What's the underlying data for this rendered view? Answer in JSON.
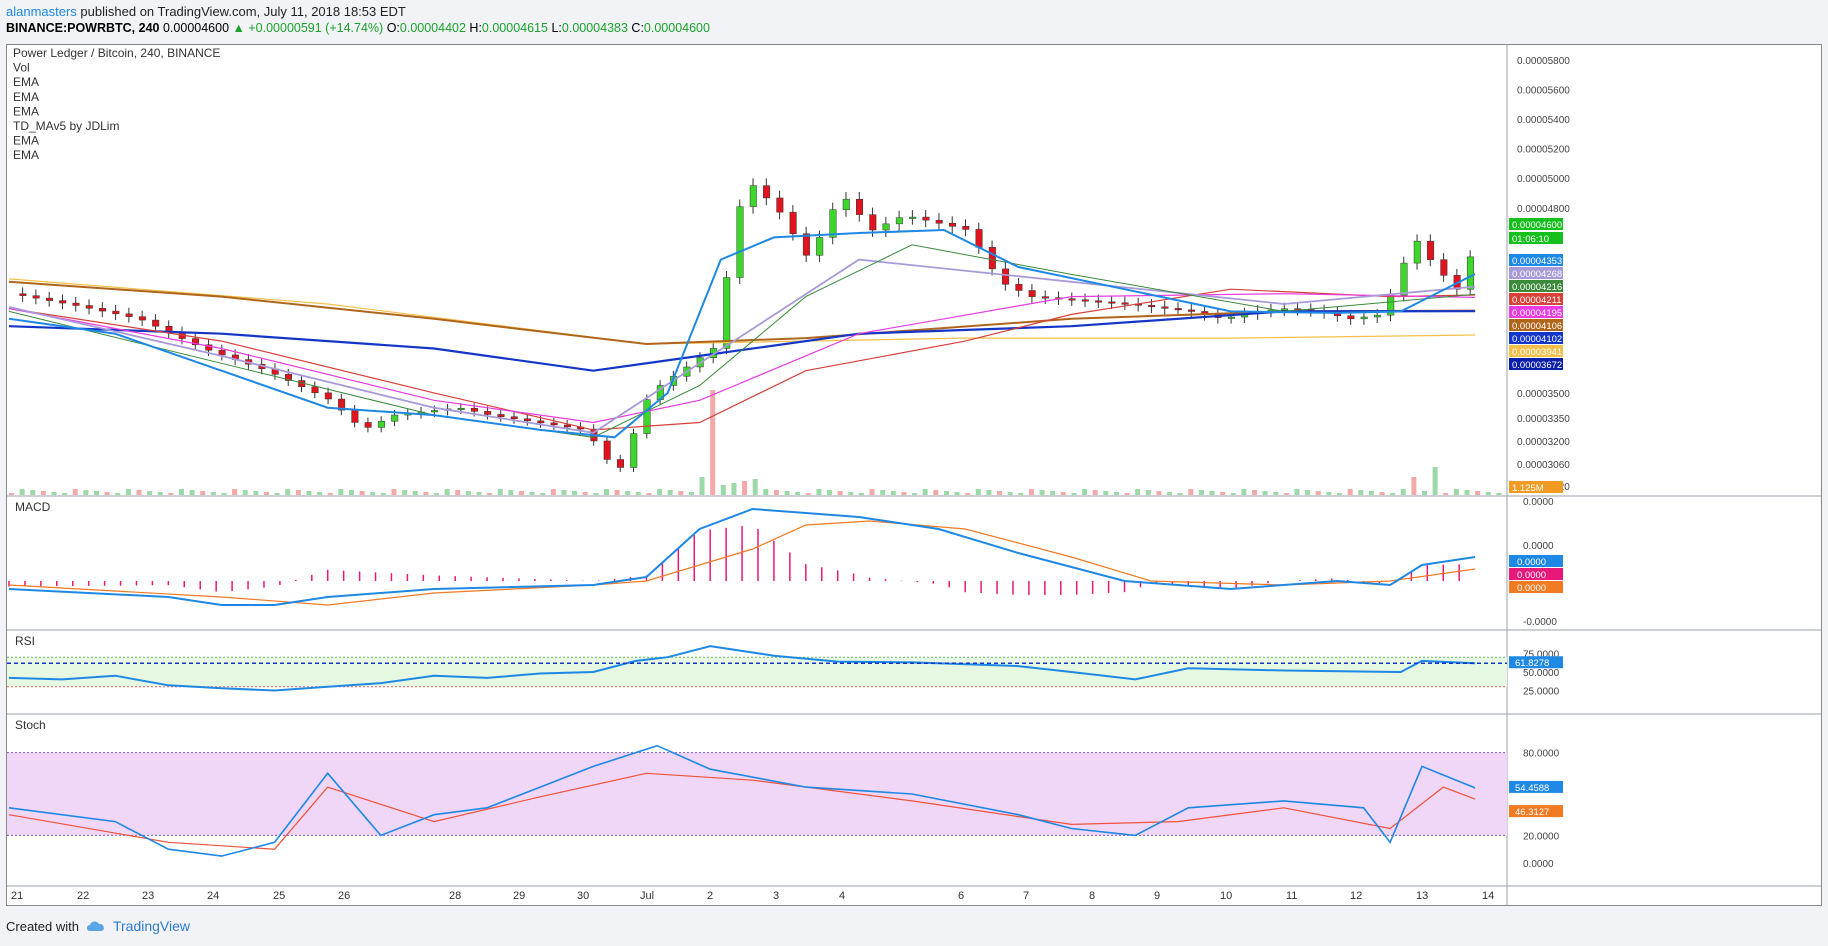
{
  "header": {
    "user": "alanmasters",
    "published_text": " published on TradingView.com, July 11, 2018 18:53 EDT",
    "symbol": "BINANCE:POWRBTC, 240",
    "price": "0.00004600",
    "change": "▲ +0.00000591 (+14.74%)",
    "o_label": "O:",
    "o_val": "0.00004402",
    "h_label": "H:",
    "h_val": "0.00004615",
    "l_label": "L:",
    "l_val": "0.00004383",
    "c_label": "C:",
    "c_val": "0.00004600"
  },
  "legend": [
    "Power Ledger / Bitcoin, 240, BINANCE",
    "Vol",
    "EMA",
    "EMA",
    "EMA",
    "TD_MAv5 by JDLim",
    "EMA",
    "EMA"
  ],
  "footer": {
    "created": "Created with",
    "brand": "TradingView"
  },
  "colors": {
    "up": "#3dd62a",
    "down": "#e0141e",
    "ema_blue": "#1e88e5",
    "ema_navy": "#1336c8",
    "ema_brown": "#b0651b",
    "ema_red": "#d8403a",
    "ema_pink": "#e83ce0",
    "ema_lav": "#a89ad8",
    "ema_green": "#3a8a3a",
    "ema_yellow": "#f4c04a"
  },
  "chart_data": {
    "type": "line",
    "x_tick_labels": [
      "21",
      "22",
      "23",
      "24",
      "25",
      "26",
      "28",
      "29",
      "30",
      "Jul",
      "2",
      "3",
      "4",
      "6",
      "7",
      "8",
      "9",
      "10",
      "11",
      "12",
      "13",
      "14"
    ],
    "price_pane": {
      "y_tick_labels": [
        "0.00005800",
        "0.00005600",
        "0.00005400",
        "0.00005200",
        "0.00005000",
        "0.00004800",
        "0.00003500",
        "0.00003350",
        "0.00003200",
        "0.00003060",
        "0.00002920"
      ],
      "price_path": [
        [
          0,
          4.22e-05
        ],
        [
          12,
          4.14e-05
        ],
        [
          24,
          4.05e-05
        ],
        [
          36,
          3.85e-05
        ],
        [
          48,
          3.7e-05
        ],
        [
          60,
          3.5e-05
        ],
        [
          66,
          3.3e-05
        ],
        [
          72,
          3.4e-05
        ],
        [
          84,
          3.45e-05
        ],
        [
          90,
          3.4e-05
        ],
        [
          108,
          3.3e-05
        ],
        [
          114,
          3e-05
        ],
        [
          120,
          3.55e-05
        ],
        [
          132,
          3.85e-05
        ],
        [
          138,
          5e-05
        ],
        [
          144,
          4.8e-05
        ],
        [
          150,
          4.45e-05
        ],
        [
          156,
          4.9e-05
        ],
        [
          162,
          4.65e-05
        ],
        [
          168,
          4.75e-05
        ],
        [
          174,
          4.7e-05
        ],
        [
          180,
          4.65e-05
        ],
        [
          186,
          4.3e-05
        ],
        [
          192,
          4.2e-05
        ],
        [
          210,
          4.15e-05
        ],
        [
          222,
          4.1e-05
        ],
        [
          228,
          4.05e-05
        ],
        [
          234,
          4.1e-05
        ],
        [
          240,
          4.12e-05
        ],
        [
          246,
          4.1e-05
        ],
        [
          252,
          4.05e-05
        ],
        [
          258,
          4.08e-05
        ],
        [
          264,
          4.6e-05
        ],
        [
          268,
          4.4e-05
        ],
        [
          272,
          4.25e-05
        ],
        [
          276,
          4.6e-05
        ]
      ],
      "ema_blue_path": [
        [
          0,
          4.05e-05
        ],
        [
          20,
          3.95e-05
        ],
        [
          40,
          3.7e-05
        ],
        [
          60,
          3.45e-05
        ],
        [
          80,
          3.4e-05
        ],
        [
          100,
          3.3e-05
        ],
        [
          114,
          3.25e-05
        ],
        [
          124,
          3.55e-05
        ],
        [
          134,
          4.45e-05
        ],
        [
          144,
          4.6e-05
        ],
        [
          160,
          4.63e-05
        ],
        [
          176,
          4.65e-05
        ],
        [
          190,
          4.4e-05
        ],
        [
          210,
          4.25e-05
        ],
        [
          230,
          4.1e-05
        ],
        [
          250,
          4.09e-05
        ],
        [
          262,
          4.1e-05
        ],
        [
          276,
          4.353e-05
        ]
      ],
      "ema_navy_path": [
        [
          0,
          4e-05
        ],
        [
          40,
          3.95e-05
        ],
        [
          80,
          3.85e-05
        ],
        [
          110,
          3.7e-05
        ],
        [
          130,
          3.8e-05
        ],
        [
          160,
          3.95e-05
        ],
        [
          200,
          4e-05
        ],
        [
          240,
          4.1e-05
        ],
        [
          276,
          4.102e-05
        ]
      ],
      "ema_brown_path": [
        [
          0,
          4.3e-05
        ],
        [
          40,
          4.2e-05
        ],
        [
          80,
          4.05e-05
        ],
        [
          120,
          3.88e-05
        ],
        [
          150,
          3.92e-05
        ],
        [
          200,
          4.05e-05
        ],
        [
          240,
          4.1e-05
        ],
        [
          276,
          4.106e-05
        ]
      ],
      "ema_red_path": [
        [
          0,
          4.12e-05
        ],
        [
          40,
          3.9e-05
        ],
        [
          80,
          3.55e-05
        ],
        [
          110,
          3.3e-05
        ],
        [
          130,
          3.35e-05
        ],
        [
          150,
          3.7e-05
        ],
        [
          180,
          3.9e-05
        ],
        [
          200,
          4.08e-05
        ],
        [
          230,
          4.25e-05
        ],
        [
          260,
          4.2e-05
        ],
        [
          276,
          4.211e-05
        ]
      ],
      "ema_pink_path": [
        [
          0,
          4.12e-05
        ],
        [
          40,
          3.85e-05
        ],
        [
          80,
          3.5e-05
        ],
        [
          110,
          3.35e-05
        ],
        [
          130,
          3.5e-05
        ],
        [
          160,
          3.95e-05
        ],
        [
          200,
          4.2e-05
        ],
        [
          240,
          4.22e-05
        ],
        [
          276,
          4.195e-05
        ]
      ],
      "ema_lav_path": [
        [
          0,
          4.13e-05
        ],
        [
          40,
          3.8e-05
        ],
        [
          80,
          3.45e-05
        ],
        [
          110,
          3.28e-05
        ],
        [
          130,
          3.75e-05
        ],
        [
          160,
          4.45e-05
        ],
        [
          200,
          4.3e-05
        ],
        [
          240,
          4.15e-05
        ],
        [
          276,
          4.268e-05
        ]
      ],
      "ema_green_path": [
        [
          0,
          4.1e-05
        ],
        [
          40,
          3.75e-05
        ],
        [
          80,
          3.4e-05
        ],
        [
          110,
          3.25e-05
        ],
        [
          130,
          3.6e-05
        ],
        [
          150,
          4.2e-05
        ],
        [
          170,
          4.55e-05
        ],
        [
          200,
          4.35e-05
        ],
        [
          240,
          4.1e-05
        ],
        [
          276,
          4.216e-05
        ]
      ],
      "ema_yellow_path": [
        [
          0,
          4.32e-05
        ],
        [
          60,
          4.15e-05
        ],
        [
          120,
          3.88e-05
        ],
        [
          180,
          3.92e-05
        ],
        [
          230,
          3.92e-05
        ],
        [
          276,
          3.941e-05
        ]
      ],
      "right_labels": [
        {
          "text": "0.00004600",
          "color": "#16c01c",
          "y": 4.6e-05
        },
        {
          "text": "01:06:10",
          "color": "#16c01c",
          "y": 4.54e-05
        },
        {
          "text": "0.00004353",
          "color": "#1e88e5",
          "y": 4.353e-05
        },
        {
          "text": "0.00004268",
          "color": "#a89ad8",
          "y": 4.268e-05
        },
        {
          "text": "0.00004216",
          "color": "#3a8a3a",
          "y": 4.216e-05
        },
        {
          "text": "0.00004211",
          "color": "#d8403a",
          "y": 4.211e-05
        },
        {
          "text": "0.00004195",
          "color": "#e83ce0",
          "y": 4.195e-05
        },
        {
          "text": "0.00004106",
          "color": "#b0651b",
          "y": 4.106e-05
        },
        {
          "text": "0.00004102",
          "color": "#1336c8",
          "y": 4.102e-05
        },
        {
          "text": "0.00003941",
          "color": "#f4c04a",
          "y": 3.941e-05
        },
        {
          "text": "0.00003672",
          "color": "#0c1fa8",
          "y": 3.672e-05
        },
        {
          "text": "1.125M",
          "color": "#f29b23",
          "y": 2.92e-05
        }
      ]
    },
    "macd_pane": {
      "title": "MACD",
      "y_tick_labels": [
        "0.0000",
        "0.0000",
        "-0.0000"
      ],
      "macd_path": [
        [
          0,
          -2
        ],
        [
          30,
          -4
        ],
        [
          40,
          -6
        ],
        [
          50,
          -6
        ],
        [
          60,
          -4
        ],
        [
          80,
          -2
        ],
        [
          110,
          -1
        ],
        [
          120,
          1
        ],
        [
          130,
          13
        ],
        [
          140,
          18
        ],
        [
          150,
          17
        ],
        [
          160,
          16
        ],
        [
          175,
          13
        ],
        [
          190,
          7
        ],
        [
          210,
          0
        ],
        [
          230,
          -2
        ],
        [
          250,
          0
        ],
        [
          260,
          -1
        ],
        [
          266,
          4
        ],
        [
          276,
          6
        ]
      ],
      "signal_path": [
        [
          0,
          -1
        ],
        [
          40,
          -4
        ],
        [
          60,
          -6
        ],
        [
          80,
          -3
        ],
        [
          110,
          -1
        ],
        [
          120,
          0
        ],
        [
          140,
          8
        ],
        [
          150,
          14
        ],
        [
          162,
          15
        ],
        [
          180,
          13
        ],
        [
          200,
          6
        ],
        [
          215,
          0
        ],
        [
          240,
          -1
        ],
        [
          260,
          0
        ],
        [
          276,
          3
        ]
      ],
      "right_labels": [
        {
          "text": "0.0000",
          "color": "#1e88e5"
        },
        {
          "text": "0.0000",
          "color": "#e8187a"
        },
        {
          "text": "0.0000",
          "color": "#f27a23"
        }
      ]
    },
    "rsi_pane": {
      "title": "RSI",
      "y_tick_labels": [
        "75.0000",
        "50.0000",
        "25.0000"
      ],
      "rsi_path": [
        [
          0,
          42
        ],
        [
          10,
          40
        ],
        [
          20,
          45
        ],
        [
          30,
          32
        ],
        [
          40,
          28
        ],
        [
          50,
          25
        ],
        [
          60,
          30
        ],
        [
          70,
          35
        ],
        [
          80,
          45
        ],
        [
          90,
          42
        ],
        [
          100,
          48
        ],
        [
          110,
          50
        ],
        [
          118,
          65
        ],
        [
          124,
          70
        ],
        [
          132,
          85
        ],
        [
          144,
          72
        ],
        [
          156,
          64
        ],
        [
          170,
          63
        ],
        [
          190,
          58
        ],
        [
          200,
          50
        ],
        [
          212,
          40
        ],
        [
          222,
          55
        ],
        [
          240,
          52
        ],
        [
          262,
          50
        ],
        [
          266,
          65
        ],
        [
          276,
          61.8
        ]
      ],
      "value_label": "61.8278",
      "value": 61.8278
    },
    "stoch_pane": {
      "title": "Stoch",
      "y_tick_labels": [
        "80.0000",
        "20.0000",
        "0.0000"
      ],
      "k_path": [
        [
          0,
          40
        ],
        [
          20,
          30
        ],
        [
          30,
          10
        ],
        [
          40,
          5
        ],
        [
          50,
          15
        ],
        [
          60,
          65
        ],
        [
          70,
          20
        ],
        [
          80,
          35
        ],
        [
          90,
          40
        ],
        [
          100,
          55
        ],
        [
          110,
          70
        ],
        [
          122,
          85
        ],
        [
          132,
          68
        ],
        [
          150,
          55
        ],
        [
          170,
          50
        ],
        [
          190,
          35
        ],
        [
          200,
          25
        ],
        [
          212,
          20
        ],
        [
          222,
          40
        ],
        [
          240,
          45
        ],
        [
          255,
          40
        ],
        [
          260,
          15
        ],
        [
          266,
          70
        ],
        [
          276,
          54.4
        ]
      ],
      "d_path": [
        [
          0,
          35
        ],
        [
          30,
          15
        ],
        [
          50,
          10
        ],
        [
          60,
          55
        ],
        [
          80,
          30
        ],
        [
          100,
          48
        ],
        [
          120,
          65
        ],
        [
          140,
          60
        ],
        [
          170,
          45
        ],
        [
          200,
          28
        ],
        [
          220,
          30
        ],
        [
          240,
          40
        ],
        [
          260,
          25
        ],
        [
          270,
          55
        ],
        [
          276,
          46.3
        ]
      ],
      "k_label": "54.4588",
      "d_label": "46.3127"
    }
  }
}
